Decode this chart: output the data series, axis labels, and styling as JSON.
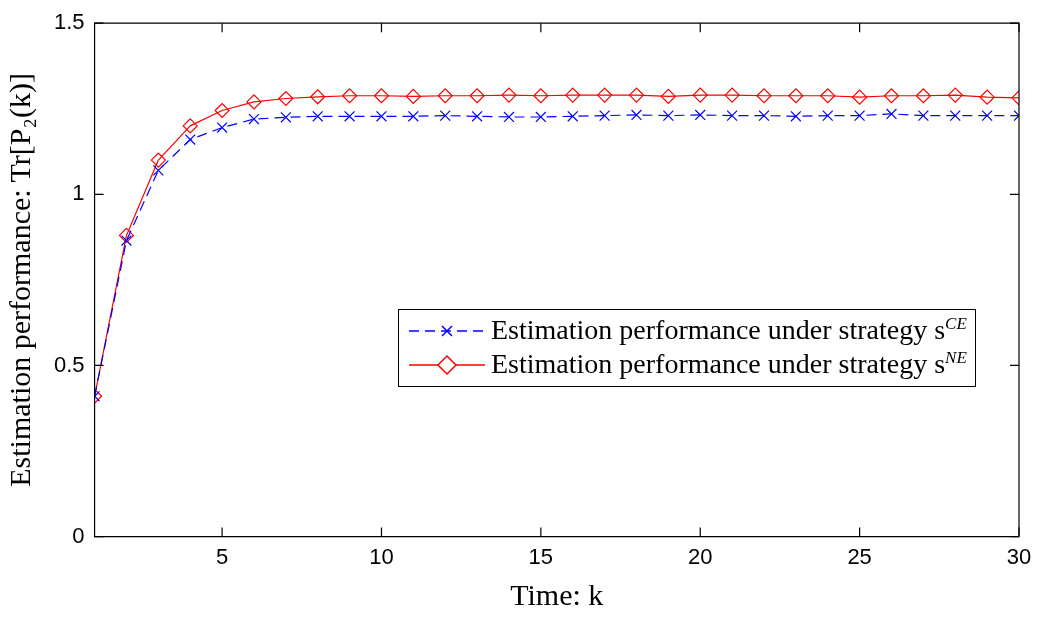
{
  "chart_data": {
    "type": "line",
    "xlabel": "Time: k",
    "ylabel": "Estimation performance: Tr[P₂(k)]",
    "x": [
      1,
      2,
      3,
      4,
      5,
      6,
      7,
      8,
      9,
      10,
      11,
      12,
      13,
      14,
      15,
      16,
      17,
      18,
      19,
      20,
      21,
      22,
      23,
      24,
      25,
      26,
      27,
      28,
      29,
      30
    ],
    "xlim": [
      1,
      30
    ],
    "xticks": [
      5,
      10,
      15,
      20,
      25,
      30
    ],
    "ylim": [
      0,
      1.5
    ],
    "yticks": [
      0,
      0.5,
      1,
      1.5
    ],
    "grid": false,
    "legend": "bottom right",
    "series": [
      {
        "name": "Estimation performance under strategy s$^{CE}$",
        "color": "#0000ff",
        "marker": "cross",
        "line_style": "dashed",
        "values": [
          0.41,
          0.865,
          1.07,
          1.16,
          1.195,
          1.22,
          1.225,
          1.228,
          1.228,
          1.228,
          1.228,
          1.23,
          1.228,
          1.226,
          1.226,
          1.228,
          1.23,
          1.232,
          1.23,
          1.232,
          1.23,
          1.23,
          1.228,
          1.23,
          1.23,
          1.235,
          1.23,
          1.23,
          1.23,
          1.23
        ]
      },
      {
        "name": "Estimation performance under strategy s$^{NE}$",
        "color": "#ff0000",
        "marker": "diamond",
        "line_style": "solid",
        "values": [
          0.41,
          0.88,
          1.1,
          1.2,
          1.245,
          1.27,
          1.28,
          1.285,
          1.288,
          1.288,
          1.286,
          1.288,
          1.288,
          1.29,
          1.288,
          1.29,
          1.29,
          1.29,
          1.286,
          1.29,
          1.29,
          1.288,
          1.288,
          1.288,
          1.284,
          1.288,
          1.288,
          1.29,
          1.284,
          1.282
        ]
      }
    ]
  }
}
